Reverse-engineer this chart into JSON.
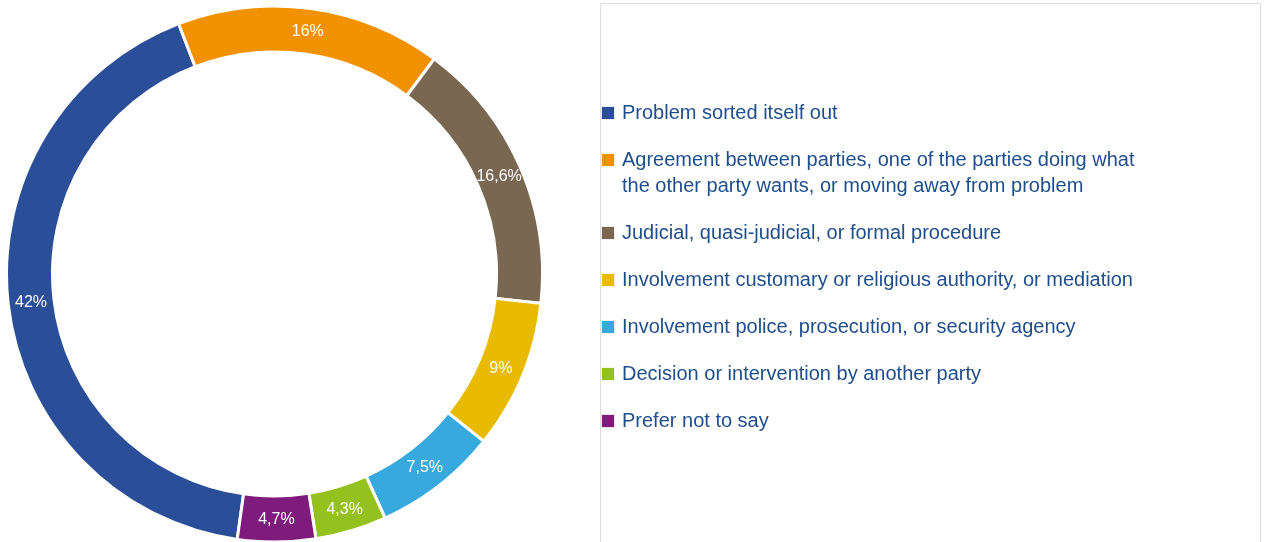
{
  "chart_data": {
    "type": "donut",
    "categories": [
      "Problem sorted itself out",
      "Agreement between parties, one of the parties doing what the other party wants, or moving away from problem",
      "Judicial, quasi-judicial, or formal procedure",
      "Involvement customary or religious authority, or mediation",
      "Involvement police, prosecution, or security agency",
      "Decision or intervention by another party",
      "Prefer not to say"
    ],
    "values": [
      42,
      16,
      16.6,
      9,
      7.5,
      4.3,
      4.7
    ],
    "value_labels": [
      "42%",
      "16%",
      "16,6%",
      "9%",
      "7,5%",
      "4,3%",
      "4,7%"
    ],
    "colors": [
      "#2a4f98",
      "#f39200",
      "#7a6752",
      "#e9bb00",
      "#38a9dc",
      "#95c11f",
      "#7e1b7d"
    ],
    "legend": "right"
  }
}
